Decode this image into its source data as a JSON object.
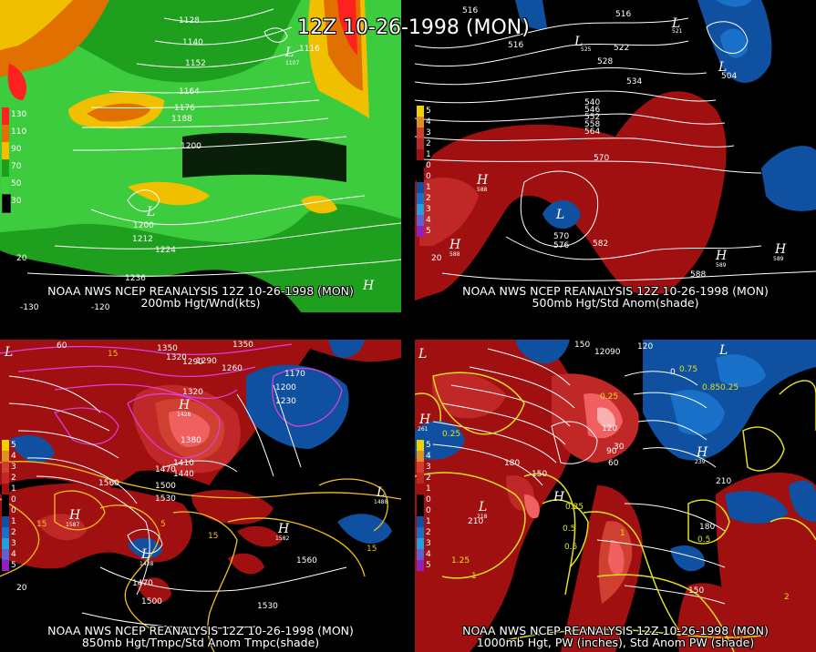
{
  "title": "12Z 10-26-1998 (MON)",
  "panels": [
    {
      "id": "p1",
      "caption_line1": "NOAA NWS NCEP REANALYSIS 12Z 10-26-1998 (MON)",
      "caption_line2": "200mb Hgt/Wnd(kts)",
      "legend": [
        {
          "label": "130",
          "color": "#ff2020"
        },
        {
          "label": "110",
          "color": "#e07000"
        },
        {
          "label": "90",
          "color": "#f0c000"
        },
        {
          "label": "70",
          "color": "#1ea01e"
        },
        {
          "label": "50",
          "color": "#40d040"
        },
        {
          "label": "30",
          "color": "#000000"
        }
      ],
      "contour_labels": [
        "1128",
        "1140",
        "1152",
        "1164",
        "1176",
        "1188",
        "1200",
        "1212",
        "1224",
        "1236",
        "1116",
        "1200"
      ],
      "lows": [
        {
          "text": "L",
          "value": "1107"
        },
        {
          "text": "L",
          "value": "1209"
        }
      ],
      "highs": [
        {
          "text": "H",
          "value": ""
        }
      ],
      "lon_labels": [
        "-130",
        "-120",
        "20"
      ]
    },
    {
      "id": "p2",
      "caption_line1": "NOAA NWS NCEP REANALYSIS 12Z 10-26-1998 (MON)",
      "caption_line2": "500mb Hgt/Std Anom(shade)",
      "legend": [
        {
          "label": "5",
          "color": "#f0d000"
        },
        {
          "label": "4",
          "color": "#e09020"
        },
        {
          "label": "3",
          "color": "#d04030"
        },
        {
          "label": "2",
          "color": "#c02828"
        },
        {
          "label": "1",
          "color": "#a01010"
        },
        {
          "label": "0",
          "color": "#000000"
        },
        {
          "label": "0",
          "color": "#000000"
        },
        {
          "label": "1",
          "color": "#1050a0"
        },
        {
          "label": "2",
          "color": "#1870c8"
        },
        {
          "label": "3",
          "color": "#20a0e0"
        },
        {
          "label": "4",
          "color": "#6060d0"
        },
        {
          "label": "5",
          "color": "#9020c0"
        }
      ],
      "contour_labels": [
        "516",
        "516",
        "516",
        "522",
        "528",
        "534",
        "540",
        "546",
        "552",
        "558",
        "564",
        "570",
        "570",
        "576",
        "582",
        "588",
        "504"
      ],
      "lows": [
        {
          "text": "L",
          "value": "525"
        },
        {
          "text": "L",
          "value": "521"
        },
        {
          "text": "L",
          "value": "504"
        },
        {
          "text": "L",
          "value": "564"
        }
      ],
      "highs": [
        {
          "text": "H",
          "value": "588"
        },
        {
          "text": "H",
          "value": "588"
        },
        {
          "text": "H",
          "value": "589"
        },
        {
          "text": "H",
          "value": "589"
        }
      ],
      "lon_labels": [
        "20"
      ]
    },
    {
      "id": "p3",
      "caption_line1": "NOAA NWS NCEP REANALYSIS 12Z 10-26-1998 (MON)",
      "caption_line2": "850mb Hgt/Tmpc/Std Anom Tmpc(shade)",
      "legend": [
        {
          "label": "5",
          "color": "#f0d000"
        },
        {
          "label": "4",
          "color": "#e09020"
        },
        {
          "label": "3",
          "color": "#d04030"
        },
        {
          "label": "2",
          "color": "#c02828"
        },
        {
          "label": "1",
          "color": "#a01010"
        },
        {
          "label": "0",
          "color": "#000000"
        },
        {
          "label": "0",
          "color": "#000000"
        },
        {
          "label": "1",
          "color": "#1050a0"
        },
        {
          "label": "2",
          "color": "#1870c8"
        },
        {
          "label": "3",
          "color": "#20a0e0"
        },
        {
          "label": "4",
          "color": "#6060d0"
        },
        {
          "label": "5",
          "color": "#9020c0"
        }
      ],
      "contour_labels": [
        "60",
        "1350",
        "1320",
        "1290",
        "1260",
        "1350",
        "1170",
        "1200",
        "1230",
        "1290",
        "1320",
        "1380",
        "1410",
        "1440",
        "1470",
        "1500",
        "1530",
        "1560",
        "1560",
        "1470",
        "1500",
        "1530",
        "15",
        "15",
        "15",
        "5",
        "15"
      ],
      "lows": [
        {
          "text": "L",
          "value": ""
        },
        {
          "text": "L",
          "value": "1438"
        },
        {
          "text": "L",
          "value": "1488"
        }
      ],
      "highs": [
        {
          "text": "H",
          "value": "1587"
        },
        {
          "text": "H",
          "value": "1582"
        },
        {
          "text": "H",
          "value": "1428"
        }
      ],
      "lon_labels": [
        "20"
      ]
    },
    {
      "id": "p4",
      "caption_line1": "NOAA NWS NCEP REANALYSIS 12Z 10-26-1998 (MON)",
      "caption_line2": "1000mb Hgt, PW (inches), Std Anom PW (shade)",
      "legend": [
        {
          "label": "5",
          "color": "#f0d000"
        },
        {
          "label": "4",
          "color": "#e09020"
        },
        {
          "label": "3",
          "color": "#d04030"
        },
        {
          "label": "2",
          "color": "#c02828"
        },
        {
          "label": "1",
          "color": "#a01010"
        },
        {
          "label": "0",
          "color": "#000000"
        },
        {
          "label": "0",
          "color": "#000000"
        },
        {
          "label": "1",
          "color": "#1050a0"
        },
        {
          "label": "2",
          "color": "#1870c8"
        },
        {
          "label": "3",
          "color": "#20a0e0"
        },
        {
          "label": "4",
          "color": "#6060d0"
        },
        {
          "label": "5",
          "color": "#9020c0"
        }
      ],
      "contour_labels": [
        "150",
        "120",
        "90",
        "120",
        "0.25",
        "0.25",
        "0.5",
        "0.5",
        "0.25",
        "0.75",
        "210",
        "180",
        "150",
        "120",
        "90",
        "60",
        "30",
        "0",
        "210",
        "180",
        "150",
        "1",
        "1.25",
        "2",
        "0.5",
        "1",
        "0.25",
        "0.85"
      ],
      "lows": [
        {
          "text": "L",
          "value": ""
        },
        {
          "text": "L",
          "value": "218"
        },
        {
          "text": "L",
          "value": ""
        }
      ],
      "highs": [
        {
          "text": "H",
          "value": "261"
        },
        {
          "text": "H",
          "value": ""
        },
        {
          "text": "H",
          "value": "239"
        }
      ],
      "lon_labels": []
    }
  ]
}
